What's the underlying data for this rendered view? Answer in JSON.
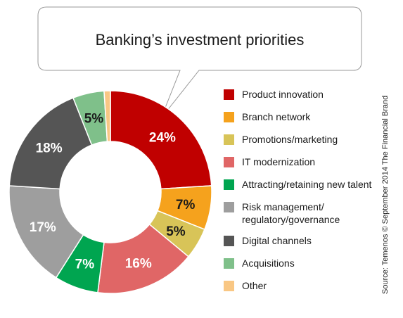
{
  "chart_data": {
    "type": "pie",
    "title": "Banking’s investment priorities",
    "categories": [
      "Product innovation",
      "Branch network",
      "Promotions/marketing",
      "IT modernization",
      "Attracting/retaining new talent",
      "Risk management/\nregulatory/governance",
      "Digital channels",
      "Acquisitions",
      "Other"
    ],
    "values": [
      24,
      7,
      5,
      16,
      7,
      17,
      18,
      5,
      1
    ],
    "data_labels": [
      "24%",
      "7%",
      "5%",
      "16%",
      "7%",
      "17%",
      "18%",
      "5%",
      ""
    ],
    "colors": [
      "#c00000",
      "#f5a21d",
      "#d8c458",
      "#e06666",
      "#00a550",
      "#9e9e9e",
      "#555555",
      "#7fc08a",
      "#f9c784"
    ],
    "label_colors": [
      "#ffffff",
      "#1a1a1a",
      "#1a1a1a",
      "#ffffff",
      "#ffffff",
      "#ffffff",
      "#ffffff",
      "#1a1a1a",
      "#1a1a1a"
    ],
    "legend_position": "right",
    "style": "donut"
  },
  "source_note": "Source: Temenos © September 2014 The Financial Brand"
}
